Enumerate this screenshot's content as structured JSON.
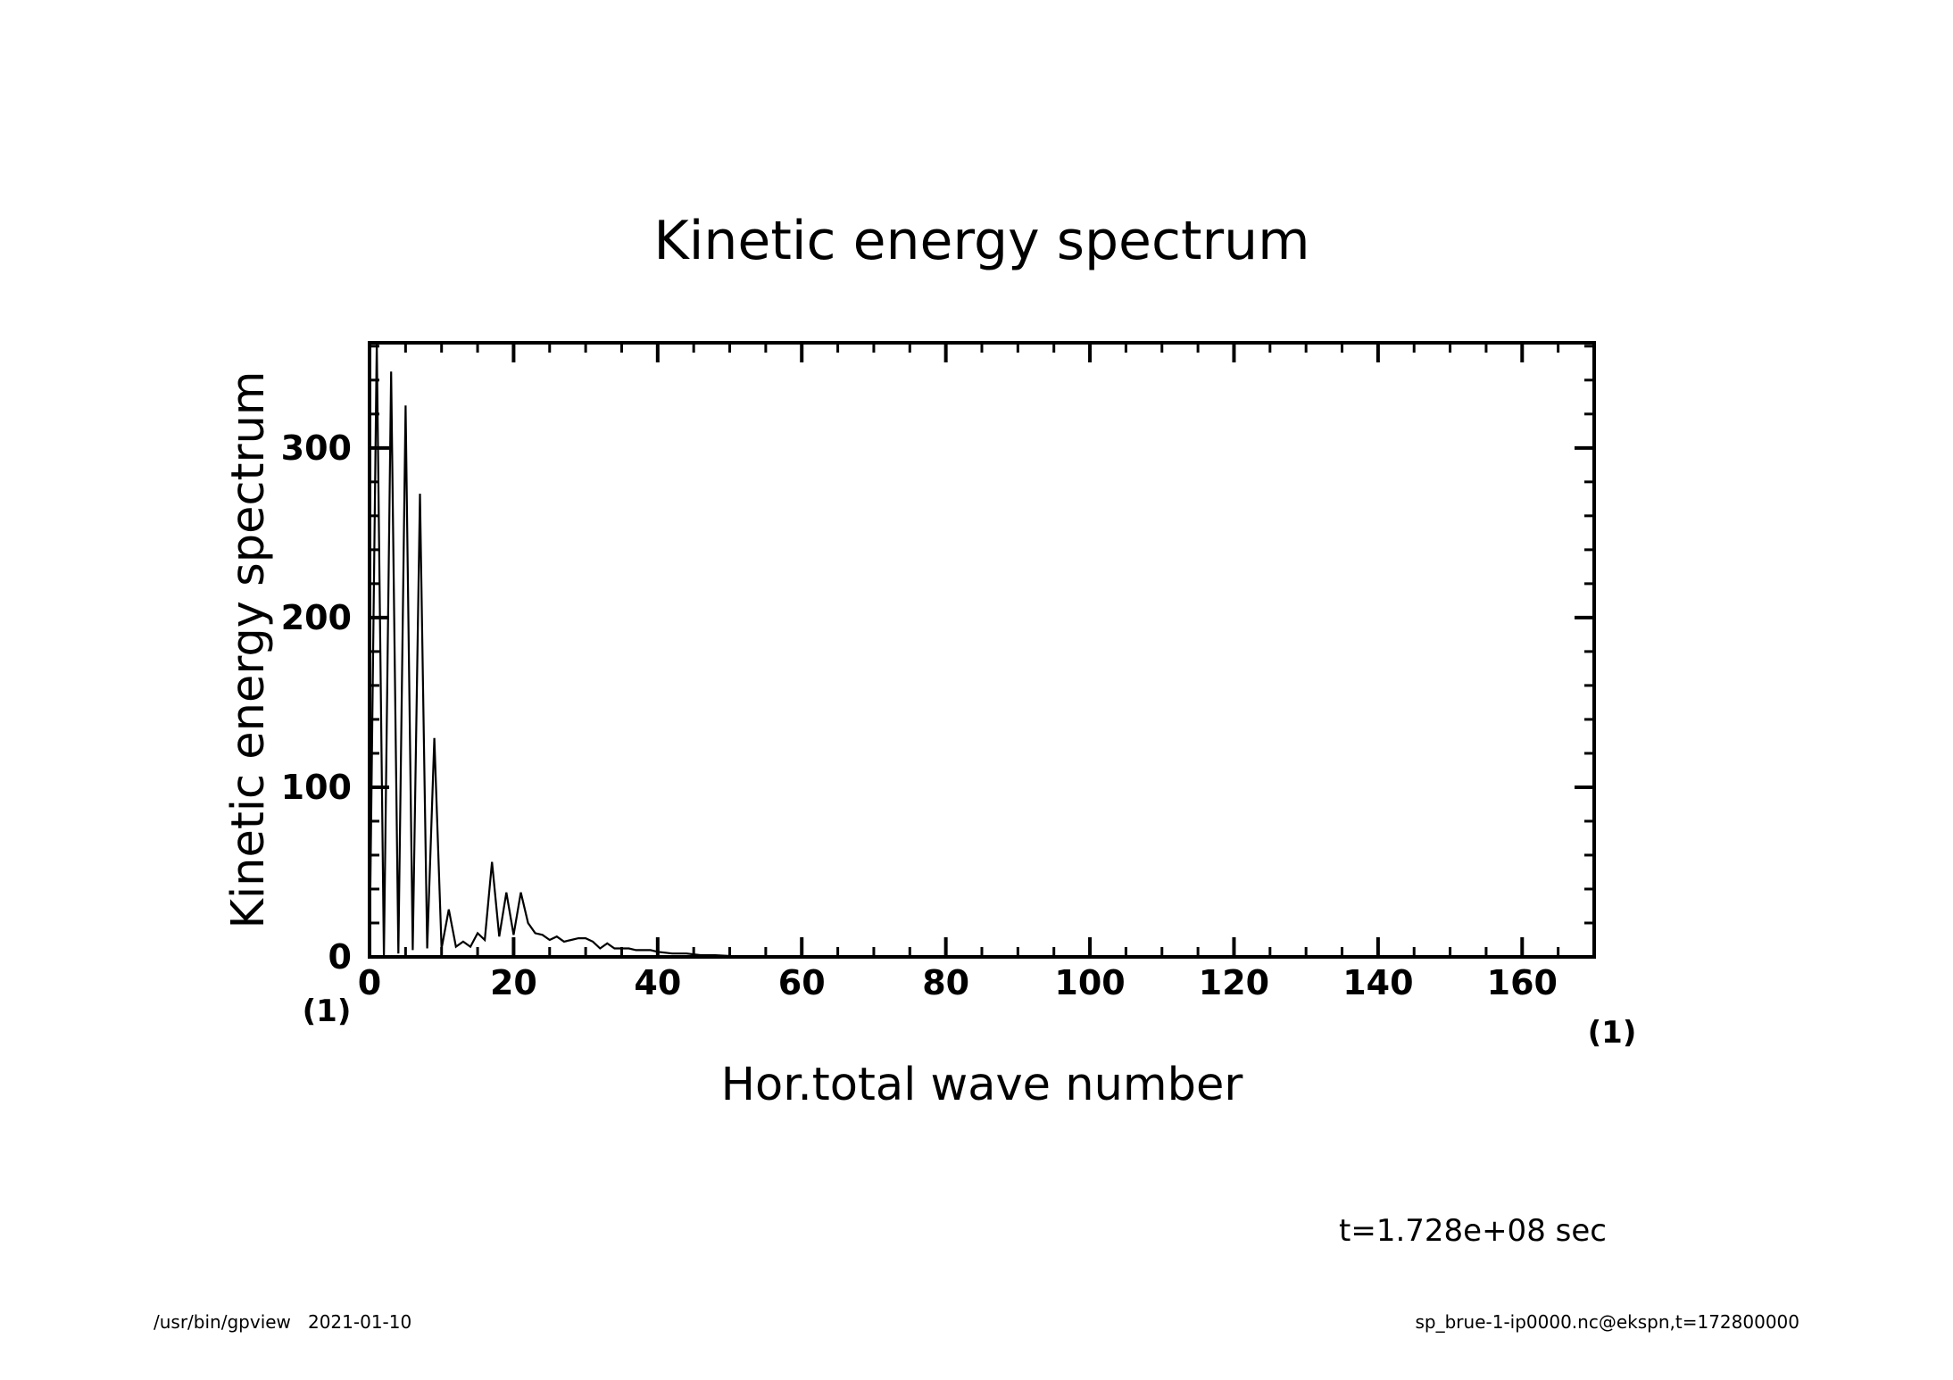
{
  "chart_data": {
    "type": "line",
    "title": "Kinetic energy spectrum",
    "xlabel": "Hor.total wave number",
    "ylabel": "Kinetic energy spectrum",
    "x_unit": "(1)",
    "y_unit": "(1)",
    "xlim": [
      0,
      170
    ],
    "ylim": [
      0,
      362
    ],
    "xticks": [
      0,
      20,
      40,
      60,
      80,
      100,
      120,
      140,
      160
    ],
    "yticks": [
      0,
      100,
      200,
      300
    ],
    "x_minor_step": 5,
    "y_minor_step": 20,
    "grid": false,
    "series": [
      {
        "x": [
          0,
          1,
          2,
          3,
          4,
          5,
          6,
          7,
          8,
          9,
          10,
          11,
          12,
          13,
          14,
          15,
          16,
          17,
          18,
          19,
          20,
          21,
          22,
          23,
          24,
          25,
          26,
          27,
          28,
          29,
          30,
          31,
          32,
          33,
          34,
          35,
          36,
          37,
          38,
          39,
          40,
          42,
          44,
          46,
          48,
          50,
          55,
          60,
          65,
          70,
          80,
          100,
          120,
          140,
          160,
          170
        ],
        "y": [
          0,
          362,
          0,
          345,
          2,
          325,
          4,
          273,
          5,
          129,
          5,
          28,
          6,
          9,
          6,
          14,
          10,
          56,
          12,
          38,
          13,
          38,
          20,
          14,
          13,
          10,
          12,
          9,
          10,
          11,
          11,
          9,
          5,
          8,
          5,
          5,
          5,
          4,
          4,
          4,
          3,
          2,
          2,
          1,
          1,
          0.5,
          0.3,
          0.2,
          0.1,
          0.1,
          0.05,
          0,
          0,
          0,
          0,
          0
        ]
      }
    ]
  },
  "time_label": "t=1.728e+08 sec",
  "footer": {
    "left": "/usr/bin/gpview   2021-01-10",
    "right": "sp_brue-1-ip0000.nc@ekspn,t=172800000"
  }
}
